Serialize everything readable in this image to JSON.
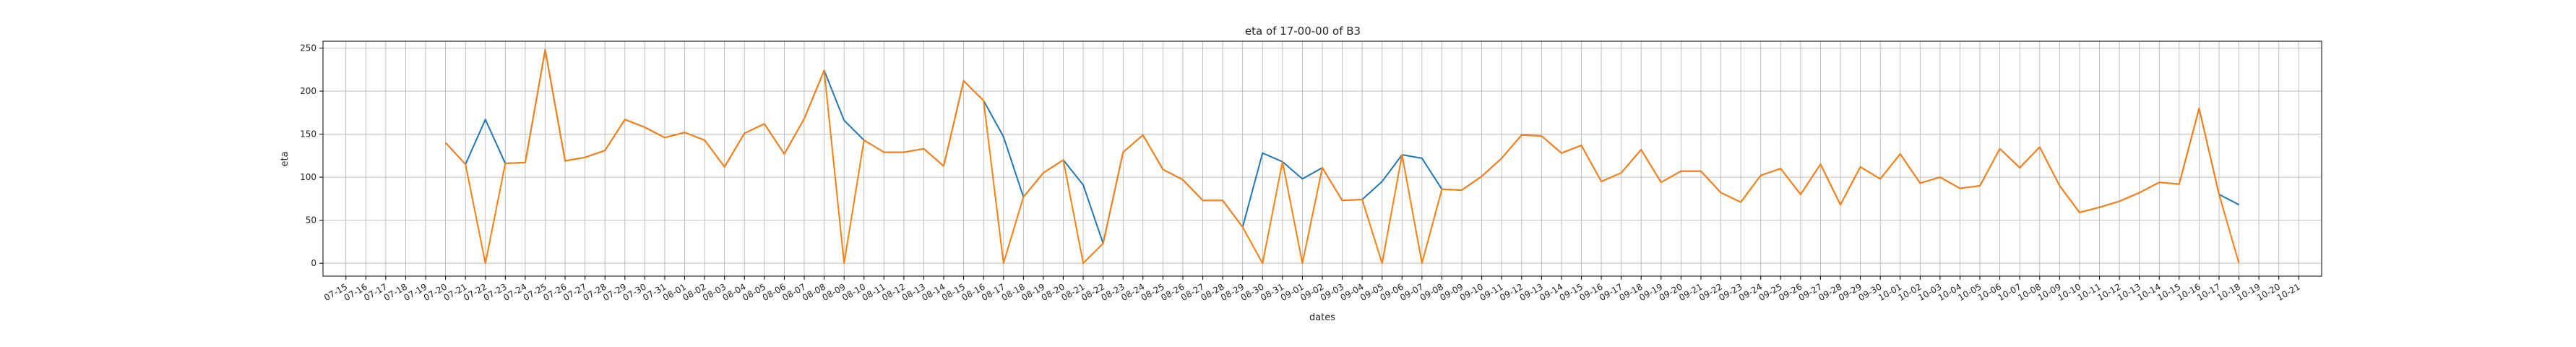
{
  "chart_data": {
    "type": "line",
    "title": "eta of 17-00-00 of B3",
    "xlabel": "dates",
    "ylabel": "eta",
    "ylim": [
      -15,
      258
    ],
    "yticks": [
      0,
      50,
      100,
      150,
      200,
      250
    ],
    "grid": true,
    "legend": "none",
    "x": [
      "07-15",
      "07-16",
      "07-17",
      "07-18",
      "07-19",
      "07-20",
      "07-21",
      "07-22",
      "07-23",
      "07-24",
      "07-25",
      "07-26",
      "07-27",
      "07-28",
      "07-29",
      "07-30",
      "07-31",
      "08-01",
      "08-02",
      "08-03",
      "08-04",
      "08-05",
      "08-06",
      "08-07",
      "08-08",
      "08-09",
      "08-10",
      "08-11",
      "08-12",
      "08-13",
      "08-14",
      "08-15",
      "08-16",
      "08-17",
      "08-18",
      "08-19",
      "08-20",
      "08-21",
      "08-22",
      "08-23",
      "08-24",
      "08-25",
      "08-26",
      "08-27",
      "08-28",
      "08-29",
      "08-30",
      "08-31",
      "09-01",
      "09-02",
      "09-03",
      "09-04",
      "09-05",
      "09-06",
      "09-07",
      "09-08",
      "09-09",
      "09-10",
      "09-11",
      "09-12",
      "09-13",
      "09-14",
      "09-15",
      "09-16",
      "09-17",
      "09-18",
      "09-19",
      "09-20",
      "09-21",
      "09-22",
      "09-23",
      "09-24",
      "09-25",
      "09-26",
      "09-27",
      "09-28",
      "09-29",
      "09-30",
      "10-01",
      "10-02",
      "10-03",
      "10-04",
      "10-05",
      "10-06",
      "10-07",
      "10-08",
      "10-09",
      "10-10",
      "10-11",
      "10-12",
      "10-13",
      "10-14",
      "10-15",
      "10-16",
      "10-17",
      "10-18",
      "10-19",
      "10-20",
      "10-21"
    ],
    "series": [
      {
        "color": "#1f77b4",
        "values": [
          null,
          null,
          null,
          null,
          null,
          140,
          115,
          167,
          116,
          117,
          248,
          119,
          123,
          131,
          167,
          158,
          146,
          152,
          143,
          112,
          151,
          162,
          127,
          168,
          224,
          166,
          143,
          129,
          129,
          133,
          113,
          212,
          189,
          147,
          77,
          105,
          120,
          91,
          23,
          129,
          149,
          109,
          97,
          73,
          73,
          42,
          128,
          118,
          98,
          111,
          73,
          74,
          95,
          126,
          122,
          86,
          85,
          101,
          122,
          149,
          148,
          128,
          137,
          95,
          105,
          132,
          94,
          107,
          107,
          82,
          71,
          102,
          110,
          80,
          115,
          68,
          112,
          98,
          127,
          93,
          100,
          87,
          90,
          133,
          111,
          135,
          90,
          59,
          65,
          72,
          82,
          94,
          92,
          180,
          80,
          68,
          null,
          null,
          null
        ]
      },
      {
        "color": "#ff7f0e",
        "values": [
          null,
          null,
          null,
          null,
          null,
          140,
          115,
          0,
          116,
          117,
          248,
          119,
          123,
          131,
          167,
          158,
          146,
          152,
          143,
          112,
          151,
          162,
          127,
          168,
          224,
          0,
          143,
          129,
          129,
          133,
          113,
          212,
          189,
          0,
          77,
          105,
          120,
          0,
          23,
          129,
          149,
          109,
          97,
          73,
          73,
          42,
          0,
          118,
          0,
          111,
          73,
          74,
          0,
          126,
          0,
          86,
          85,
          101,
          122,
          149,
          148,
          128,
          137,
          95,
          105,
          132,
          94,
          107,
          107,
          82,
          71,
          102,
          110,
          80,
          115,
          68,
          112,
          98,
          127,
          93,
          100,
          87,
          90,
          133,
          111,
          135,
          90,
          59,
          65,
          72,
          82,
          94,
          92,
          180,
          80,
          0,
          null,
          null,
          null
        ]
      }
    ]
  }
}
